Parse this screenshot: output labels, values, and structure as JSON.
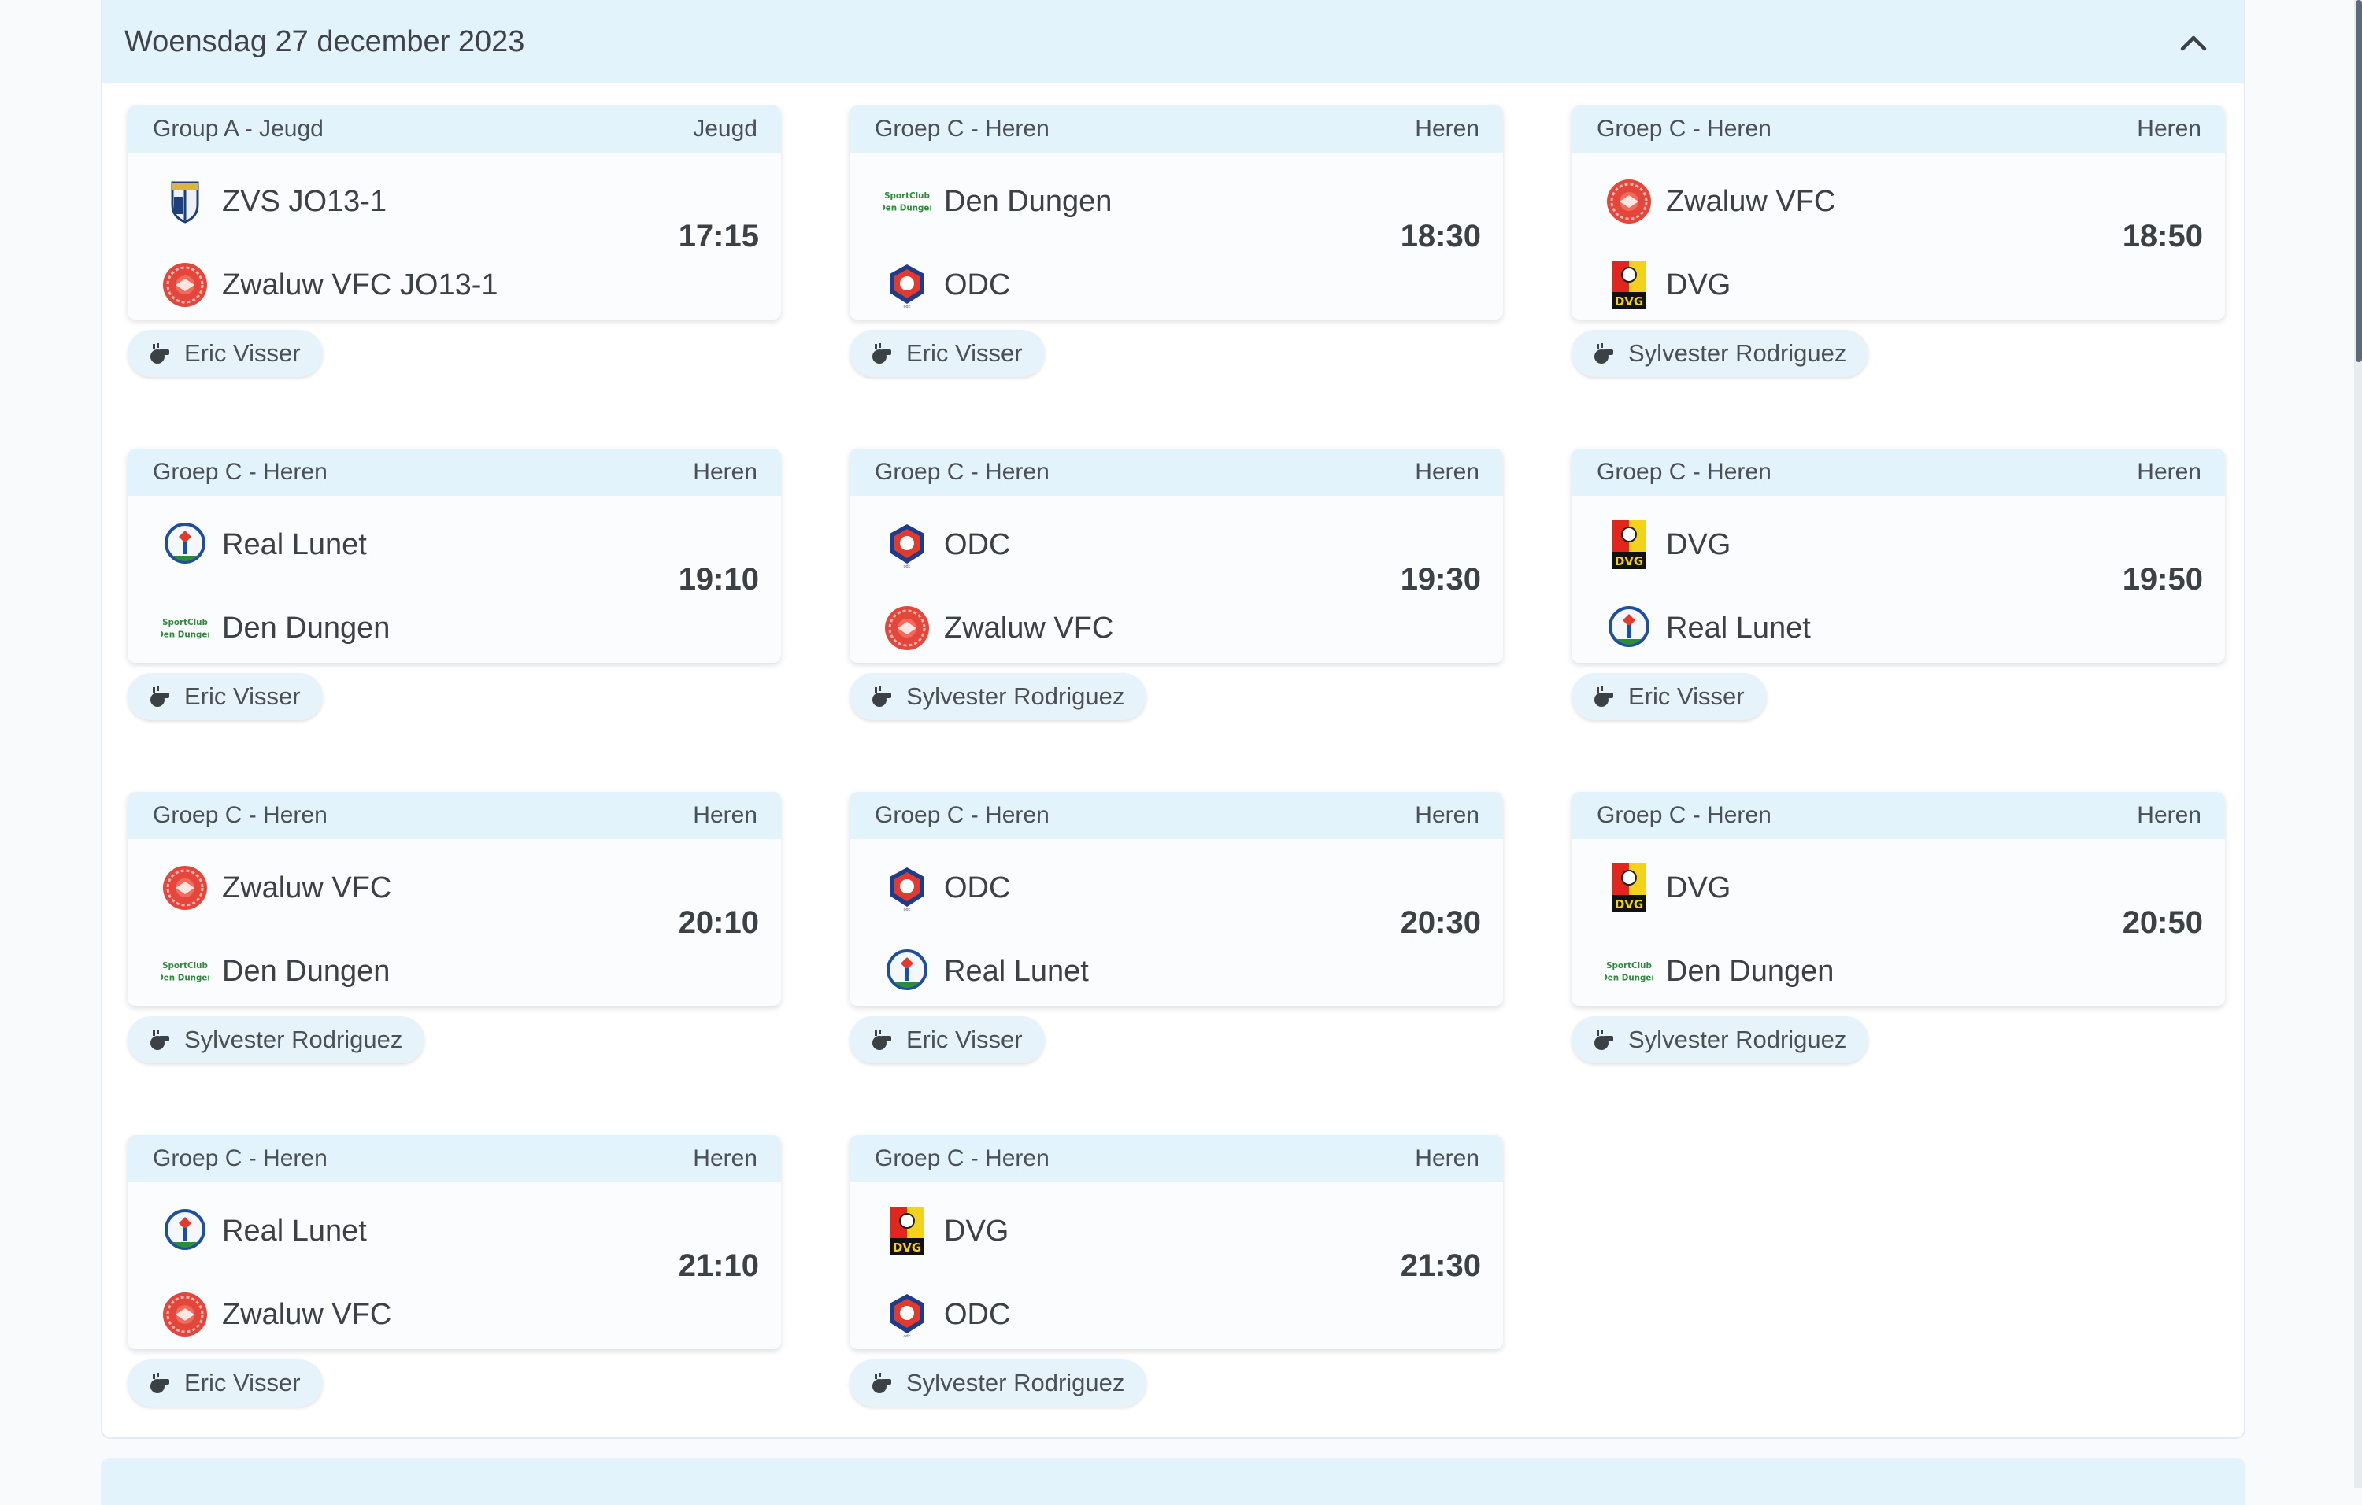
{
  "day": {
    "title": "Woensdag 27 december 2023"
  },
  "matches": [
    {
      "group": "Group A - Jeugd",
      "category": "Jeugd",
      "home": {
        "name": "ZVS JO13-1",
        "logo": "zvs"
      },
      "away": {
        "name": "Zwaluw VFC JO13-1",
        "logo": "zwaluw"
      },
      "time": "17:15",
      "referee": "Eric Visser"
    },
    {
      "group": "Groep C - Heren",
      "category": "Heren",
      "home": {
        "name": "Den Dungen",
        "logo": "dendungen"
      },
      "away": {
        "name": "ODC",
        "logo": "odc"
      },
      "time": "18:30",
      "referee": "Eric Visser"
    },
    {
      "group": "Groep C - Heren",
      "category": "Heren",
      "home": {
        "name": "Zwaluw VFC",
        "logo": "zwaluw"
      },
      "away": {
        "name": "DVG",
        "logo": "dvg"
      },
      "time": "18:50",
      "referee": "Sylvester Rodriguez"
    },
    {
      "group": "Groep C - Heren",
      "category": "Heren",
      "home": {
        "name": "Real Lunet",
        "logo": "reallunet"
      },
      "away": {
        "name": "Den Dungen",
        "logo": "dendungen"
      },
      "time": "19:10",
      "referee": "Eric Visser"
    },
    {
      "group": "Groep C - Heren",
      "category": "Heren",
      "home": {
        "name": "ODC",
        "logo": "odc"
      },
      "away": {
        "name": "Zwaluw VFC",
        "logo": "zwaluw"
      },
      "time": "19:30",
      "referee": "Sylvester Rodriguez"
    },
    {
      "group": "Groep C - Heren",
      "category": "Heren",
      "home": {
        "name": "DVG",
        "logo": "dvg"
      },
      "away": {
        "name": "Real Lunet",
        "logo": "reallunet"
      },
      "time": "19:50",
      "referee": "Eric Visser"
    },
    {
      "group": "Groep C - Heren",
      "category": "Heren",
      "home": {
        "name": "Zwaluw VFC",
        "logo": "zwaluw"
      },
      "away": {
        "name": "Den Dungen",
        "logo": "dendungen"
      },
      "time": "20:10",
      "referee": "Sylvester Rodriguez"
    },
    {
      "group": "Groep C - Heren",
      "category": "Heren",
      "home": {
        "name": "ODC",
        "logo": "odc"
      },
      "away": {
        "name": "Real Lunet",
        "logo": "reallunet"
      },
      "time": "20:30",
      "referee": "Eric Visser"
    },
    {
      "group": "Groep C - Heren",
      "category": "Heren",
      "home": {
        "name": "DVG",
        "logo": "dvg"
      },
      "away": {
        "name": "Den Dungen",
        "logo": "dendungen"
      },
      "time": "20:50",
      "referee": "Sylvester Rodriguez"
    },
    {
      "group": "Groep C - Heren",
      "category": "Heren",
      "home": {
        "name": "Real Lunet",
        "logo": "reallunet"
      },
      "away": {
        "name": "Zwaluw VFC",
        "logo": "zwaluw"
      },
      "time": "21:10",
      "referee": "Eric Visser"
    },
    {
      "group": "Groep C - Heren",
      "category": "Heren",
      "home": {
        "name": "DVG",
        "logo": "dvg"
      },
      "away": {
        "name": "ODC",
        "logo": "odc"
      },
      "time": "21:30",
      "referee": "Sylvester Rodriguez"
    }
  ],
  "icons": {
    "collapse": "chevron-up-icon",
    "referee": "whistle-icon"
  },
  "colors": {
    "header_bg": "#e3f3fb",
    "card_bg": "#fbfcfd",
    "text": "#3c4146"
  }
}
